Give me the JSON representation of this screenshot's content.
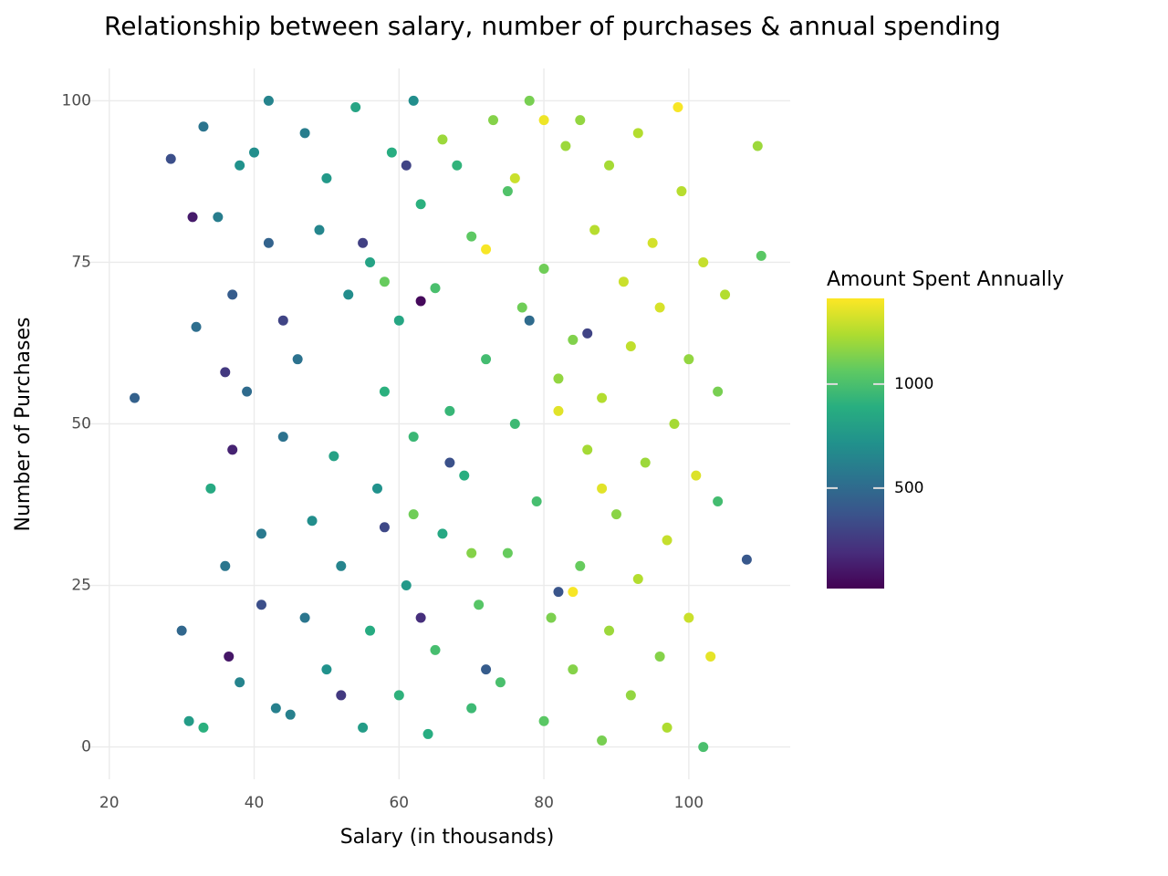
{
  "chart_data": {
    "type": "scatter",
    "title": "Relationship between salary, number of purchases & annual spending",
    "x_label": "Salary (in thousands)",
    "y_label": "Number of Purchases",
    "color_label": "Amount Spent Annually",
    "xlim": [
      16,
      114
    ],
    "xticks": [
      20,
      40,
      60,
      80,
      100
    ],
    "ylim": [
      -5,
      105
    ],
    "yticks": [
      0,
      25,
      50,
      75,
      100
    ],
    "color_lim": [
      17,
      1412
    ],
    "color_ticks": [
      500,
      1000
    ],
    "colormap": [
      "#440154",
      "#472d7b",
      "#3b528b",
      "#2c728e",
      "#21918c",
      "#28ae80",
      "#5ec962",
      "#addc30",
      "#fde725"
    ],
    "grid": true,
    "points": [
      [
        23.5,
        54,
        450
      ],
      [
        28.5,
        91,
        350
      ],
      [
        108,
        29,
        400
      ],
      [
        109.5,
        93,
        1200
      ],
      [
        110,
        76,
        1050
      ],
      [
        102,
        0,
        1000
      ],
      [
        98.5,
        99,
        1400
      ],
      [
        63,
        69,
        50
      ],
      [
        37,
        46,
        150
      ],
      [
        36.5,
        14,
        100
      ],
      [
        31.5,
        82,
        120
      ],
      [
        45,
        5,
        620
      ],
      [
        47,
        20,
        560
      ],
      [
        48,
        35,
        700
      ],
      [
        46,
        60,
        540
      ],
      [
        49,
        80,
        650
      ],
      [
        47,
        95,
        600
      ],
      [
        50,
        12,
        720
      ],
      [
        52,
        28,
        640
      ],
      [
        51,
        45,
        810
      ],
      [
        53,
        70,
        690
      ],
      [
        50,
        88,
        760
      ],
      [
        54,
        99,
        830
      ],
      [
        55,
        3,
        780
      ],
      [
        56,
        18,
        870
      ],
      [
        57,
        40,
        720
      ],
      [
        58,
        55,
        900
      ],
      [
        56,
        75,
        820
      ],
      [
        59,
        92,
        880
      ],
      [
        60,
        8,
        910
      ],
      [
        61,
        25,
        760
      ],
      [
        62,
        48,
        950
      ],
      [
        60,
        66,
        840
      ],
      [
        63,
        84,
        900
      ],
      [
        62,
        100,
        700
      ],
      [
        64,
        2,
        880
      ],
      [
        65,
        15,
        990
      ],
      [
        66,
        33,
        850
      ],
      [
        67,
        52,
        940
      ],
      [
        65,
        71,
        1000
      ],
      [
        68,
        90,
        920
      ],
      [
        70,
        6,
        960
      ],
      [
        71,
        22,
        1040
      ],
      [
        69,
        42,
        890
      ],
      [
        72,
        60,
        980
      ],
      [
        70,
        79,
        1060
      ],
      [
        73,
        97,
        1150
      ],
      [
        74,
        10,
        1000
      ],
      [
        75,
        30,
        1080
      ],
      [
        76,
        50,
        960
      ],
      [
        77,
        68,
        1100
      ],
      [
        75,
        86,
        1020
      ],
      [
        78,
        100,
        1120
      ],
      [
        80,
        4,
        1050
      ],
      [
        81,
        20,
        1130
      ],
      [
        79,
        38,
        990
      ],
      [
        82,
        57,
        1180
      ],
      [
        80,
        74,
        1100
      ],
      [
        83,
        93,
        1200
      ],
      [
        84,
        12,
        1150
      ],
      [
        85,
        28,
        1080
      ],
      [
        86,
        46,
        1220
      ],
      [
        84,
        63,
        1140
      ],
      [
        87,
        80,
        1260
      ],
      [
        85,
        97,
        1180
      ],
      [
        88,
        1,
        1120
      ],
      [
        89,
        18,
        1200
      ],
      [
        90,
        36,
        1160
      ],
      [
        88,
        54,
        1250
      ],
      [
        91,
        72,
        1300
      ],
      [
        89,
        90,
        1220
      ],
      [
        92,
        8,
        1180
      ],
      [
        93,
        26,
        1250
      ],
      [
        94,
        44,
        1200
      ],
      [
        92,
        62,
        1280
      ],
      [
        95,
        78,
        1320
      ],
      [
        93,
        95,
        1250
      ],
      [
        96,
        14,
        1150
      ],
      [
        97,
        32,
        1290
      ],
      [
        98,
        50,
        1220
      ],
      [
        96,
        68,
        1330
      ],
      [
        99,
        86,
        1260
      ],
      [
        97,
        3,
        1240
      ],
      [
        100,
        20,
        1300
      ],
      [
        101,
        42,
        1340
      ],
      [
        100,
        60,
        1180
      ],
      [
        102,
        75,
        1290
      ],
      [
        103,
        14,
        1360
      ],
      [
        104,
        55,
        1120
      ],
      [
        105,
        70,
        1250
      ],
      [
        104,
        38,
        980
      ],
      [
        30,
        18,
        480
      ],
      [
        32,
        65,
        520
      ],
      [
        33,
        3,
        900
      ],
      [
        34,
        40,
        860
      ],
      [
        35,
        82,
        600
      ],
      [
        36,
        28,
        560
      ],
      [
        37,
        70,
        420
      ],
      [
        38,
        10,
        640
      ],
      [
        39,
        55,
        500
      ],
      [
        40,
        92,
        700
      ],
      [
        41,
        33,
        580
      ],
      [
        42,
        78,
        460
      ],
      [
        43,
        6,
        620
      ],
      [
        44,
        48,
        540
      ],
      [
        42,
        100,
        640
      ],
      [
        38,
        90,
        720
      ],
      [
        33,
        96,
        550
      ],
      [
        31,
        4,
        780
      ],
      [
        36,
        58,
        250
      ],
      [
        41,
        22,
        350
      ],
      [
        44,
        66,
        300
      ],
      [
        52,
        8,
        250
      ],
      [
        58,
        34,
        320
      ],
      [
        63,
        20,
        200
      ],
      [
        55,
        78,
        280
      ],
      [
        61,
        90,
        300
      ],
      [
        67,
        44,
        360
      ],
      [
        72,
        12,
        420
      ],
      [
        78,
        66,
        500
      ],
      [
        82,
        24,
        380
      ],
      [
        86,
        64,
        300
      ],
      [
        66,
        94,
        1200
      ],
      [
        72,
        77,
        1400
      ],
      [
        70,
        30,
        1150
      ],
      [
        76,
        88,
        1300
      ],
      [
        82,
        52,
        1350
      ],
      [
        62,
        36,
        1100
      ],
      [
        58,
        72,
        1080
      ],
      [
        80,
        97,
        1380
      ],
      [
        88,
        40,
        1350
      ],
      [
        84,
        24,
        1400
      ]
    ]
  }
}
